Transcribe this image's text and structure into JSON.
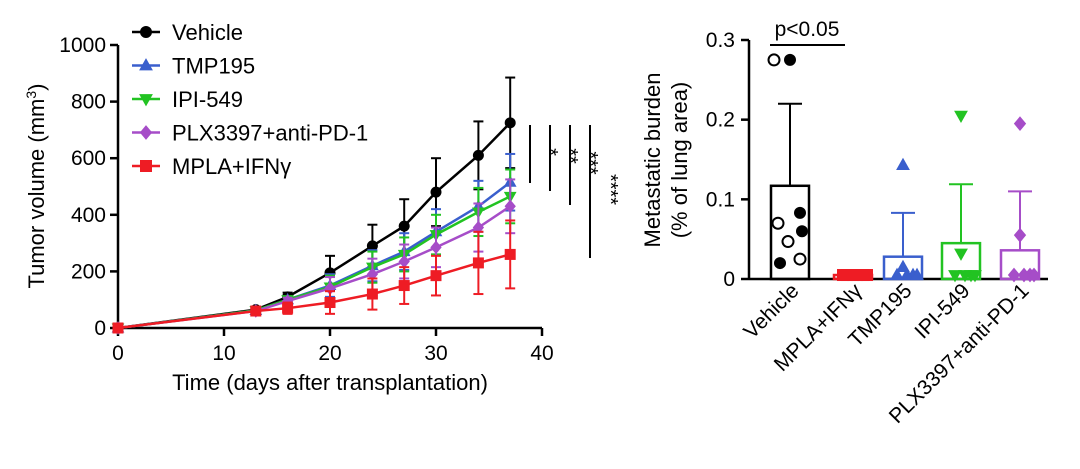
{
  "colors": {
    "vehicle": "#000000",
    "tmp195": "#3a5fcd",
    "ipi549": "#22c322",
    "plx": "#a64dc8",
    "mpla": "#ee1c24"
  },
  "chart_data": [
    {
      "type": "line",
      "xlabel": "Time (days after transplantation)",
      "ylabel": "Tumor volume (mm",
      "ylabel_sup": "3",
      "ylabel_end": ")",
      "xlim": [
        0,
        40
      ],
      "ylim": [
        0,
        1000
      ],
      "xticks": [
        0,
        10,
        20,
        30,
        40
      ],
      "yticks": [
        0,
        200,
        400,
        600,
        800,
        1000
      ],
      "x": [
        0,
        13,
        16,
        20,
        24,
        27,
        30,
        34,
        37
      ],
      "series": [
        {
          "name": "Vehicle",
          "color": "#000000",
          "marker": "circle",
          "values": [
            0,
            65,
            110,
            195,
            290,
            360,
            480,
            610,
            725
          ],
          "errors": [
            0,
            10,
            15,
            60,
            75,
            95,
            120,
            120,
            160
          ]
        },
        {
          "name": "TMP195",
          "color": "#3a5fcd",
          "marker": "triangle-up",
          "values": [
            0,
            62,
            100,
            150,
            220,
            270,
            340,
            430,
            515
          ],
          "errors": [
            0,
            8,
            12,
            40,
            55,
            65,
            80,
            90,
            100
          ]
        },
        {
          "name": "IPI-549",
          "color": "#22c322",
          "marker": "triangle-down",
          "values": [
            0,
            62,
            100,
            145,
            215,
            260,
            330,
            410,
            465
          ],
          "errors": [
            0,
            8,
            12,
            40,
            55,
            60,
            70,
            85,
            95
          ]
        },
        {
          "name": "PLX3397+anti-PD-1",
          "color": "#a64dc8",
          "marker": "diamond",
          "values": [
            0,
            60,
            95,
            140,
            190,
            235,
            285,
            355,
            430
          ],
          "errors": [
            0,
            8,
            12,
            40,
            55,
            60,
            70,
            85,
            95
          ]
        },
        {
          "name": "MPLA+IFNγ",
          "color": "#ee1c24",
          "marker": "square",
          "values": [
            0,
            60,
            70,
            90,
            120,
            150,
            185,
            230,
            260
          ],
          "errors": [
            0,
            8,
            20,
            40,
            55,
            65,
            70,
            110,
            120
          ]
        }
      ],
      "significance": [
        "*",
        "**",
        "***",
        "****"
      ]
    },
    {
      "type": "bar",
      "ylabel_line1": "Metastatic burden",
      "ylabel_line2": "(% of lung area)",
      "ylim": [
        0,
        0.3
      ],
      "yticks": [
        0,
        0.1,
        0.2,
        0.3
      ],
      "ytick_labels": [
        "0",
        "0.1",
        "0.2",
        "0.3"
      ],
      "annotation": "p<0.05",
      "categories": [
        "Vehicle",
        "MPLA+IFNγ",
        "TMP195",
        "IPI-549",
        "PLX3397+anti-PD-1"
      ],
      "values": [
        0.117,
        0.005,
        0.028,
        0.045,
        0.036
      ],
      "errors": [
        0.103,
        0.003,
        0.055,
        0.074,
        0.074
      ],
      "colors": [
        "#000000",
        "#ee1c24",
        "#3a5fcd",
        "#22c322",
        "#a64dc8"
      ],
      "markers": [
        "circle",
        "square",
        "triangle-up",
        "triangle-down",
        "diamond"
      ],
      "points": [
        [
          0.275,
          0.275,
          0.083,
          0.07,
          0.06,
          0.047,
          0.025,
          0.02
        ],
        [
          0.005,
          0.005,
          0.005,
          0.005,
          0.005,
          0.005
        ],
        [
          0.143,
          0.015,
          0.005,
          0.005,
          0.005,
          0.005
        ],
        [
          0.205,
          0.032,
          0.005,
          0.005,
          0.005,
          0.005
        ],
        [
          0.195,
          0.055,
          0.005,
          0.005,
          0.005,
          0.005
        ]
      ],
      "hollow": [
        [
          true,
          false,
          false,
          true,
          false,
          true,
          true,
          false
        ],
        [
          false,
          false,
          false,
          false,
          false,
          false
        ],
        [
          false,
          false,
          false,
          false,
          false,
          false
        ],
        [
          false,
          false,
          false,
          false,
          false,
          false
        ],
        [
          false,
          false,
          false,
          false,
          false,
          false
        ]
      ]
    }
  ]
}
